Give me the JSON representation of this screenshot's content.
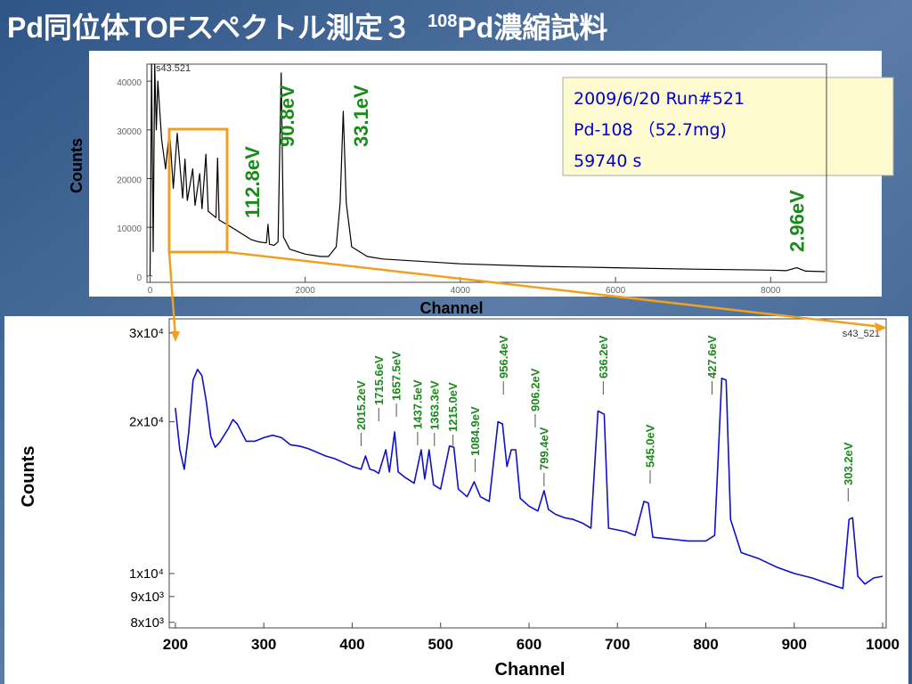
{
  "slide": {
    "title": [
      "Pd同位体TOFスペクトル測定３",
      "108",
      "Pd濃縮試料"
    ]
  },
  "chart_data": [
    {
      "type": "line",
      "tag": "s43.521",
      "xlabel": "Channel",
      "ylabel": "Counts",
      "color": "#000000",
      "info": [
        "2009/6/20  Run#521",
        "Pd-108 （52.7mg)",
        "59740 s"
      ],
      "xlim": [
        -40,
        8720
      ],
      "ylim": [
        -1300,
        43500
      ],
      "xticks": [
        0,
        2000,
        4000,
        6000,
        8000
      ],
      "yticks": [
        0,
        10000,
        20000,
        30000,
        40000
      ],
      "annotations": [
        {
          "text": "112.8eV",
          "x": 1320
        },
        {
          "text": "90.8eV",
          "x": 1765
        },
        {
          "text": "33.1eV",
          "x": 2720
        },
        {
          "text": "2.96eV",
          "x": 8340
        }
      ],
      "x": [
        0,
        20,
        40,
        60,
        80,
        100,
        150,
        200,
        250,
        300,
        350,
        420,
        450,
        480,
        550,
        580,
        640,
        670,
        720,
        750,
        850,
        870,
        890,
        1000,
        1100,
        1200,
        1300,
        1400,
        1500,
        1520,
        1540,
        1600,
        1650,
        1690,
        1720,
        1800,
        2000,
        2200,
        2300,
        2400,
        2450,
        2490,
        2530,
        2600,
        2800,
        3000,
        4000,
        5000,
        6000,
        7000,
        8000,
        8200,
        8337,
        8450,
        8700
      ],
      "values": [
        0,
        43500,
        5000,
        43500,
        30000,
        40000,
        28000,
        22000,
        30000,
        18000,
        29300,
        16000,
        24000,
        15500,
        22000,
        14500,
        21000,
        13800,
        25000,
        13300,
        12000,
        24200,
        11500,
        10500,
        9500,
        8500,
        7500,
        7000,
        6800,
        10600,
        6500,
        6300,
        7000,
        41700,
        8000,
        5500,
        4500,
        4000,
        4000,
        6000,
        15000,
        33800,
        15000,
        6000,
        4000,
        3500,
        2500,
        2000,
        1700,
        1400,
        1200,
        1100,
        1700,
        1000,
        900
      ]
    },
    {
      "type": "line",
      "tag": "s43_521",
      "xlabel": "Channel",
      "ylabel": "Counts",
      "color": "#1010c8",
      "log_y": true,
      "xlim": [
        193,
        1004
      ],
      "ylim": [
        7800,
        32000
      ],
      "xticks": [
        200,
        300,
        400,
        500,
        600,
        700,
        800,
        900,
        1000
      ],
      "yticks": [
        {
          "value": 8000,
          "label": "8x10³"
        },
        {
          "value": 9000,
          "label": "9x10³"
        },
        {
          "value": 10000,
          "label": "1x10⁴"
        },
        {
          "value": 20000,
          "label": "2x10⁴"
        },
        {
          "value": 30000,
          "label": "3x10⁴"
        }
      ],
      "annotations": [
        {
          "text": "2015.2eV",
          "x": 410
        },
        {
          "text": "1715.6eV",
          "x": 430
        },
        {
          "text": "1657.5eV",
          "x": 450
        },
        {
          "text": "1437.5eV",
          "x": 474
        },
        {
          "text": "1363.3eV",
          "x": 493
        },
        {
          "text": "1215.0eV",
          "x": 514
        },
        {
          "text": "1084.9eV",
          "x": 539
        },
        {
          "text": "956.4eV",
          "x": 571
        },
        {
          "text": "906.2eV",
          "x": 607
        },
        {
          "text": "799.4eV",
          "x": 617
        },
        {
          "text": "636.2eV",
          "x": 684
        },
        {
          "text": "545.0eV",
          "x": 737
        },
        {
          "text": "427.6eV",
          "x": 807
        },
        {
          "text": "303.2eV",
          "x": 961
        }
      ],
      "x": [
        200,
        205,
        210,
        215,
        220,
        225,
        230,
        235,
        240,
        245,
        250,
        260,
        265,
        270,
        280,
        290,
        300,
        310,
        320,
        330,
        340,
        350,
        360,
        370,
        380,
        390,
        400,
        410,
        415,
        420,
        425,
        430,
        438,
        442,
        448,
        452,
        460,
        470,
        478,
        482,
        487,
        492,
        500,
        510,
        515,
        520,
        530,
        538,
        545,
        555,
        565,
        570,
        575,
        580,
        585,
        590,
        600,
        610,
        617,
        622,
        630,
        640,
        650,
        660,
        670,
        678,
        685,
        690,
        700,
        710,
        720,
        730,
        735,
        740,
        760,
        780,
        800,
        810,
        818,
        823,
        828,
        840,
        860,
        880,
        900,
        920,
        940,
        955,
        962,
        966,
        972,
        980,
        990,
        1000
      ],
      "values": [
        21300,
        17600,
        16100,
        19000,
        24200,
        25400,
        24700,
        21900,
        18700,
        17800,
        18200,
        19400,
        20200,
        19800,
        18300,
        18300,
        18600,
        18800,
        18600,
        18000,
        17900,
        17700,
        17400,
        17100,
        16900,
        16600,
        16300,
        16100,
        17100,
        16100,
        16000,
        15800,
        17600,
        15900,
        19100,
        15900,
        15500,
        15100,
        17600,
        15400,
        17600,
        15000,
        14700,
        17900,
        17800,
        14700,
        14200,
        15200,
        14200,
        13900,
        20000,
        19800,
        16300,
        17600,
        17600,
        14100,
        13600,
        13300,
        14600,
        13400,
        13100,
        12900,
        12800,
        12600,
        12300,
        21000,
        20700,
        12300,
        12200,
        12100,
        11900,
        13900,
        13800,
        11800,
        11700,
        11600,
        11600,
        11900,
        24400,
        24200,
        12800,
        11000,
        10700,
        10300,
        10000,
        9800,
        9530,
        9340,
        12800,
        12900,
        9870,
        9530,
        9800,
        9870
      ]
    }
  ]
}
